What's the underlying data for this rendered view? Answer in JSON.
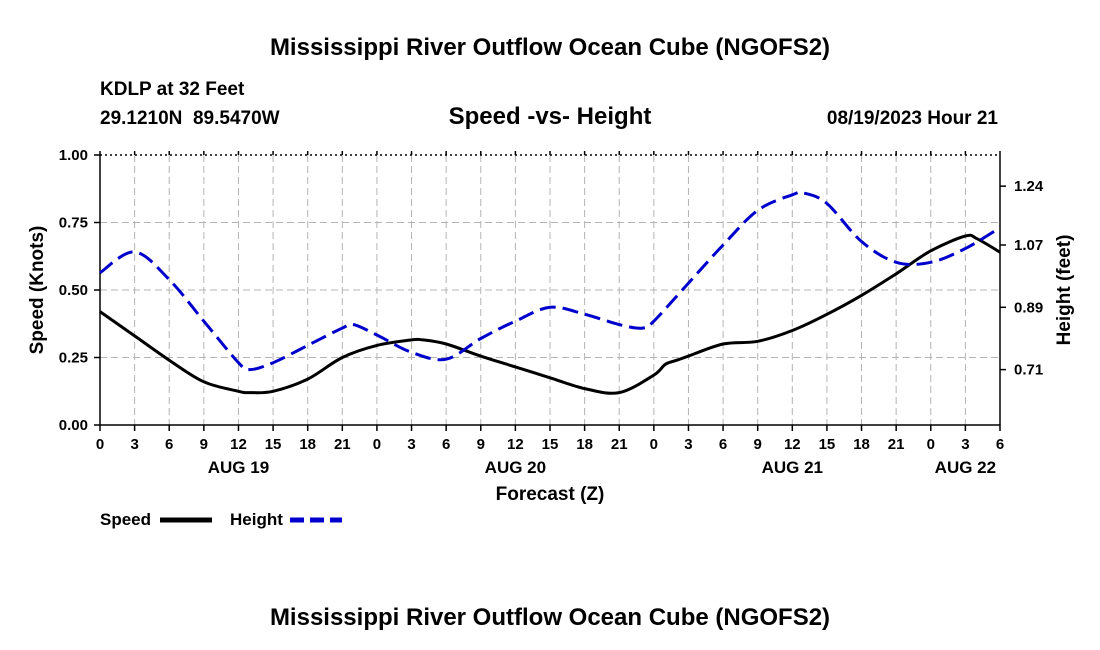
{
  "page": {
    "title_top": "Mississippi River Outflow Ocean Cube (NGOFS2)",
    "title_bottom": "Mississippi River Outflow Ocean Cube (NGOFS2)",
    "station": "KDLP at 32 Feet",
    "coords": "29.1210N  89.5470W",
    "subtitle": "Speed -vs- Height",
    "datetime": "08/19/2023 Hour 21"
  },
  "chart_data": {
    "type": "line",
    "xlabel": "Forecast (Z)",
    "ylabel_left": "Speed (Knots)",
    "ylabel_right": "Height (feet)",
    "x_unit": "hours since AUG 19 00Z",
    "xlim": [
      0,
      78
    ],
    "ylim_left": [
      0,
      1
    ],
    "ylim_right": [
      0.55,
      1.33
    ],
    "y_ticks_left": [
      "0.00",
      "0.25",
      "0.50",
      "0.75",
      "1.00"
    ],
    "y_ticks_right": [
      "0.71",
      "0.89",
      "1.07",
      "1.24"
    ],
    "y_ticks_right_values": [
      0.71,
      0.89,
      1.07,
      1.24
    ],
    "x_tick_labels": [
      "0",
      "3",
      "6",
      "9",
      "12",
      "15",
      "18",
      "21",
      "0",
      "3",
      "6",
      "9",
      "12",
      "15",
      "18",
      "21",
      "0",
      "3",
      "6",
      "9",
      "12",
      "15",
      "18",
      "21",
      "0",
      "3",
      "6"
    ],
    "day_labels": [
      {
        "label": "AUG 19",
        "hour": 12
      },
      {
        "label": "AUG 20",
        "hour": 36
      },
      {
        "label": "AUG 21",
        "hour": 60
      },
      {
        "label": "AUG 22",
        "hour": 75
      }
    ],
    "grid": true,
    "legend_position": "bottom-left",
    "series": [
      {
        "name": "Speed",
        "axis": "left",
        "color": "#000000",
        "style": "solid",
        "x": [
          0,
          3,
          6,
          9,
          12,
          13,
          15,
          18,
          21,
          24,
          27,
          28,
          30,
          33,
          36,
          39,
          42,
          45,
          48,
          49,
          50,
          51,
          54,
          57,
          60,
          63,
          66,
          69,
          72,
          75,
          76,
          78
        ],
        "y": [
          0.42,
          0.33,
          0.24,
          0.16,
          0.125,
          0.12,
          0.125,
          0.17,
          0.25,
          0.295,
          0.315,
          0.315,
          0.3,
          0.255,
          0.215,
          0.175,
          0.135,
          0.12,
          0.185,
          0.225,
          0.24,
          0.255,
          0.3,
          0.31,
          0.35,
          0.41,
          0.48,
          0.56,
          0.645,
          0.7,
          0.69,
          0.64
        ]
      },
      {
        "name": "Height",
        "axis": "right",
        "color": "#0000cc",
        "style": "dashed",
        "x": [
          0,
          3,
          6,
          9,
          12,
          13,
          15,
          18,
          21,
          22,
          24,
          27,
          30,
          33,
          36,
          39,
          42,
          45,
          47,
          48,
          51,
          54,
          57,
          60,
          61,
          63,
          66,
          69,
          72,
          75,
          78
        ],
        "y": [
          0.99,
          1.05,
          0.97,
          0.85,
          0.73,
          0.71,
          0.73,
          0.78,
          0.83,
          0.84,
          0.81,
          0.76,
          0.74,
          0.8,
          0.85,
          0.89,
          0.87,
          0.84,
          0.83,
          0.85,
          0.96,
          1.07,
          1.17,
          1.215,
          1.22,
          1.19,
          1.08,
          1.02,
          1.02,
          1.06,
          1.12
        ]
      }
    ]
  }
}
